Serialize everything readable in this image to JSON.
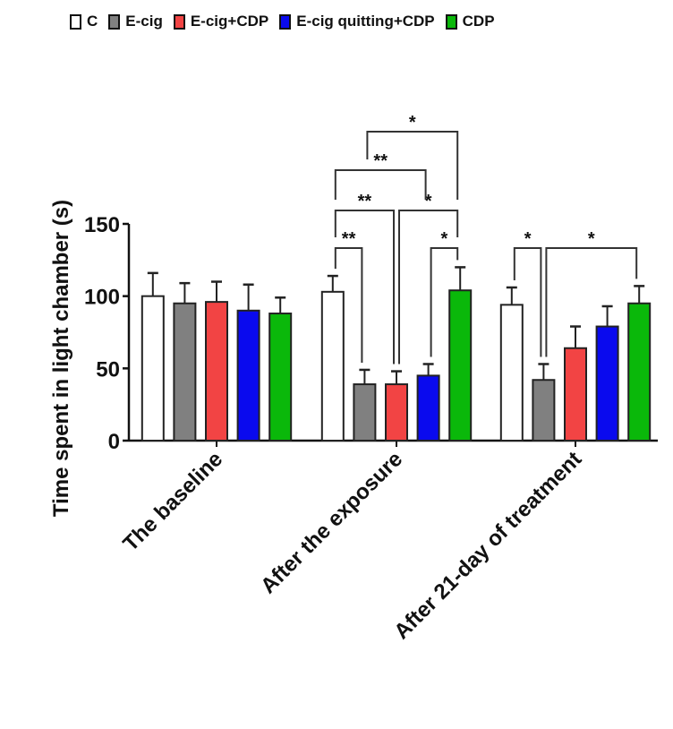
{
  "chart_data": {
    "type": "bar",
    "title": "",
    "xlabel": "",
    "ylabel": "Time spent in light chamber (s)",
    "ylim": [
      0,
      150
    ],
    "yticks": [
      0,
      50,
      100,
      150
    ],
    "grid": false,
    "legend_position": "top",
    "categories": [
      "The baseline",
      "After the exposure",
      "After 21-day of treatment"
    ],
    "series": [
      {
        "name": "C",
        "color": "#ffffff",
        "values": [
          100,
          103,
          94
        ],
        "errors": [
          16,
          11,
          12
        ]
      },
      {
        "name": "E-cig",
        "color": "#808080",
        "values": [
          95,
          39,
          42
        ],
        "errors": [
          14,
          10,
          11
        ]
      },
      {
        "name": "E-cig+CDP",
        "color": "#f24444",
        "values": [
          96,
          39,
          64
        ],
        "errors": [
          14,
          9,
          15
        ]
      },
      {
        "name": "E-cig quitting+CDP",
        "color": "#0a0aee",
        "values": [
          90,
          45,
          79
        ],
        "errors": [
          18,
          8,
          14
        ]
      },
      {
        "name": "CDP",
        "color": "#0ab80a",
        "values": [
          88,
          104,
          95
        ],
        "errors": [
          11,
          16,
          12
        ]
      }
    ],
    "significance": [
      {
        "category": 1,
        "from": 0,
        "to": 1,
        "label": "**",
        "level": 1
      },
      {
        "category": 1,
        "from": 3,
        "to": 4,
        "label": "*",
        "level": 1
      },
      {
        "category": 1,
        "from": 0,
        "to": 2,
        "label": "**",
        "level": 2
      },
      {
        "category": 1,
        "from": 2,
        "to": 4,
        "label": "*",
        "level": 2
      },
      {
        "category": 1,
        "from": 0,
        "to": 3,
        "label": "**",
        "level": 3
      },
      {
        "category": 1,
        "from": 1,
        "to": 4,
        "label": "*",
        "level": 4
      },
      {
        "category": 2,
        "from": 0,
        "to": 1,
        "label": "*",
        "level": 1
      },
      {
        "category": 2,
        "from": 1,
        "to": 4,
        "label": "*",
        "level": 1
      }
    ]
  }
}
